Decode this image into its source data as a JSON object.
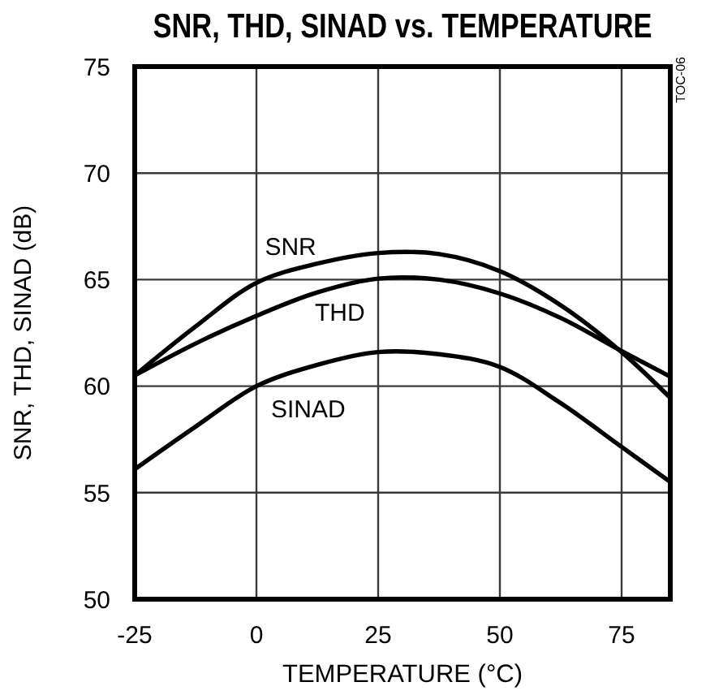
{
  "chart_data": {
    "type": "line",
    "title": "SNR, THD, SINAD vs. TEMPERATURE",
    "xlabel": "TEMPERATURE (°C)",
    "ylabel": "SNR, THD, SINAD (dB)",
    "annotations": [
      "TOC-06"
    ],
    "x": [
      -25,
      -12.5,
      0,
      12.5,
      25,
      37.5,
      50,
      62.5,
      75,
      85
    ],
    "series": [
      {
        "name": "SNR",
        "color": "#000000",
        "values": [
          60.5,
          62.8,
          64.85,
          65.75,
          66.25,
          66.2,
          65.4,
          63.8,
          61.6,
          59.45
        ]
      },
      {
        "name": "THD",
        "color": "#000000",
        "values": [
          60.5,
          62.0,
          63.3,
          64.4,
          65.05,
          65.0,
          64.35,
          63.2,
          61.65,
          60.45
        ]
      },
      {
        "name": "SINAD",
        "color": "#000000",
        "values": [
          56.1,
          58.1,
          60.0,
          61.0,
          61.6,
          61.5,
          60.9,
          59.2,
          57.15,
          55.5
        ]
      }
    ],
    "xlim": [
      -25,
      85
    ],
    "xticks": [
      -25,
      0,
      25,
      50,
      75
    ],
    "ylim": [
      50,
      75
    ],
    "yticks": [
      50,
      55,
      60,
      65,
      70,
      75
    ],
    "grid": true,
    "line_style": "solid"
  }
}
